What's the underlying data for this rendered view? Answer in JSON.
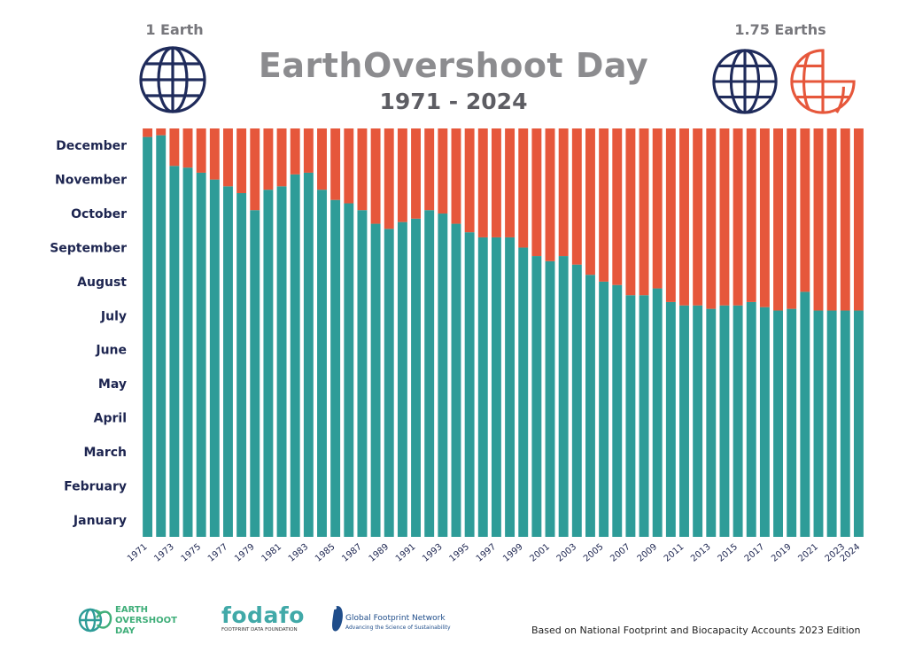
{
  "header": {
    "title": "EarthOvershoot Day",
    "subtitle": "1971 - 2024",
    "left_label": "1 Earth",
    "right_label": "1.75 Earths"
  },
  "colors": {
    "consumed": "#2e9c98",
    "overshoot": "#e6573b",
    "globe_navy": "#1f2b5b",
    "globe_red": "#e6573b",
    "month_label": "#1d2550"
  },
  "chart_data": {
    "type": "bar",
    "stacked": true,
    "y_unit": "month of year (0 = Jan 1, 12 = Dec 31)",
    "ylim": [
      0,
      12
    ],
    "y_tick_labels": [
      "January",
      "February",
      "March",
      "April",
      "May",
      "June",
      "July",
      "August",
      "September",
      "October",
      "November",
      "December"
    ],
    "x_tick_labels": [
      "1971",
      "1973",
      "1975",
      "1977",
      "1979",
      "1981",
      "1983",
      "1985",
      "1987",
      "1989",
      "1991",
      "1993",
      "1995",
      "1997",
      "1999",
      "2001",
      "2003",
      "2005",
      "2007",
      "2009",
      "2011",
      "2013",
      "2015",
      "2017",
      "2019",
      "2021",
      "2023",
      "2024"
    ],
    "categories": [
      "1971",
      "1972",
      "1973",
      "1974",
      "1975",
      "1976",
      "1977",
      "1978",
      "1979",
      "1980",
      "1981",
      "1982",
      "1983",
      "1984",
      "1985",
      "1986",
      "1987",
      "1988",
      "1989",
      "1990",
      "1991",
      "1992",
      "1993",
      "1994",
      "1995",
      "1996",
      "1997",
      "1998",
      "1999",
      "2000",
      "2001",
      "2002",
      "2003",
      "2004",
      "2005",
      "2006",
      "2007",
      "2008",
      "2009",
      "2010",
      "2011",
      "2012",
      "2013",
      "2014",
      "2015",
      "2016",
      "2017",
      "2018",
      "2019",
      "2020",
      "2021",
      "2022",
      "2023",
      "2024"
    ],
    "series": [
      {
        "values": [
          11.75,
          11.8,
          10.9,
          10.85,
          10.7,
          10.5,
          10.3,
          10.1,
          9.6,
          10.2,
          10.3,
          10.65,
          10.7,
          10.2,
          9.9,
          9.8,
          9.6,
          9.2,
          9.05,
          9.25,
          9.35,
          9.6,
          9.5,
          9.2,
          8.95,
          8.8,
          8.8,
          8.8,
          8.5,
          8.25,
          8.1,
          8.25,
          8.0,
          7.7,
          7.5,
          7.4,
          7.1,
          7.1,
          7.3,
          6.9,
          6.8,
          6.8,
          6.7,
          6.8,
          6.8,
          6.9,
          6.75,
          6.65,
          6.7,
          7.2,
          6.65,
          6.65,
          6.65,
          6.65
        ]
      },
      {
        "values": [
          0.25,
          0.2,
          1.1,
          1.15,
          1.3,
          1.5,
          1.7,
          1.9,
          2.4,
          1.8,
          1.7,
          1.35,
          1.3,
          1.8,
          2.1,
          2.2,
          2.4,
          2.8,
          2.95,
          2.75,
          2.65,
          2.4,
          2.5,
          2.8,
          3.05,
          3.2,
          3.2,
          3.2,
          3.5,
          3.75,
          3.9,
          3.75,
          4.0,
          4.3,
          4.5,
          4.6,
          4.9,
          4.9,
          4.7,
          5.1,
          5.2,
          5.2,
          5.3,
          5.2,
          5.2,
          5.1,
          5.25,
          5.35,
          5.3,
          4.8,
          5.35,
          5.35,
          5.35,
          5.35
        ]
      }
    ]
  },
  "footer": {
    "eod_logo": "EARTH OVERSHOOT DAY",
    "eod_line1": "EARTH",
    "eod_line2": "OVERSHOOT",
    "eod_line3": "DAY",
    "fodafo": "fodafo",
    "fodafo_sub": "FOOTPRINT DATA FOUNDATION",
    "gfn_name": "Global Footprint Network",
    "gfn_tag": "Advancing the Science of Sustainability",
    "source": "Based on National Footprint and Biocapacity Accounts 2023 Edition"
  }
}
